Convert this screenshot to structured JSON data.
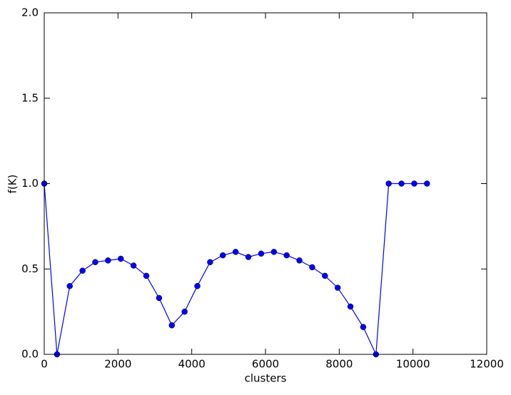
{
  "chart_data": {
    "type": "line",
    "xlabel": "clusters",
    "ylabel": "f(K)",
    "x": [
      0,
      346,
      692,
      1038,
      1384,
      1730,
      2076,
      2422,
      2768,
      3114,
      3460,
      3806,
      4152,
      4498,
      4844,
      5190,
      5536,
      5882,
      6228,
      6574,
      6920,
      7266,
      7612,
      7958,
      8304,
      8650,
      8996,
      9342,
      9688,
      10034,
      10380
    ],
    "values": [
      1.0,
      0.0,
      0.4,
      0.49,
      0.54,
      0.55,
      0.56,
      0.52,
      0.46,
      0.33,
      0.17,
      0.25,
      0.4,
      0.54,
      0.58,
      0.6,
      0.57,
      0.59,
      0.6,
      0.58,
      0.55,
      0.51,
      0.46,
      0.39,
      0.28,
      0.16,
      0.0,
      1.0,
      1.0,
      1.0,
      1.0
    ],
    "color": "#0000ff",
    "xlim": [
      0,
      12000
    ],
    "xticks": [
      0,
      2000,
      4000,
      6000,
      8000,
      10000,
      12000
    ],
    "ylim": [
      0,
      2
    ],
    "yticks": [
      {
        "value": 0,
        "label": "0.0"
      },
      0.5,
      {
        "value": 1,
        "label": "1.0"
      },
      1.5,
      {
        "value": 2,
        "label": "2.0"
      }
    ],
    "grid": false
  }
}
